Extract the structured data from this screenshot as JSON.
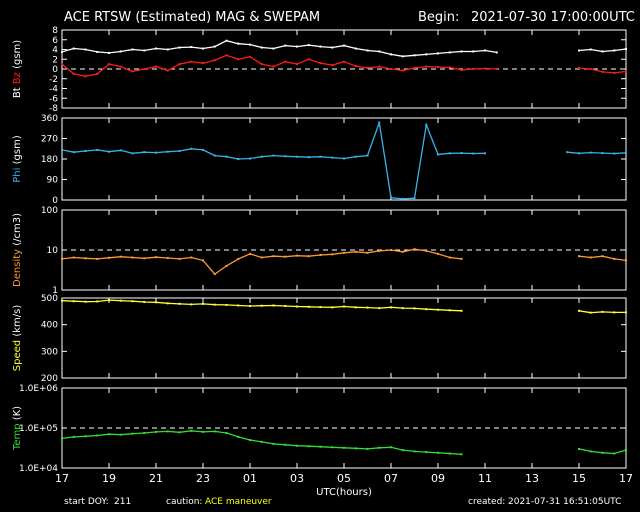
{
  "header": {
    "title": "ACE RTSW (Estimated) MAG & SWEPAM",
    "begin_label": "Begin:",
    "begin_value": "2021-07-30 17:00:00UTC"
  },
  "footer": {
    "start_doy_label": "start DOY:",
    "start_doy": "211",
    "caution_label": "caution:",
    "caution_value": "ACE maneuver",
    "created_label": "created:",
    "created_value": "2021-07-31 16:51:05UTC"
  },
  "colors": {
    "bt": "#ffffff",
    "bz": "#ff1a1a",
    "phi": "#36b4e6",
    "density": "#ff9933",
    "speed": "#ffff33",
    "temp": "#33dd33",
    "axis": "#ffffff",
    "background": "#000000",
    "caution": "#ffff00"
  },
  "chart_data": {
    "type": "line",
    "x_label": "UTC(hours)",
    "x_ticks": [
      "17",
      "19",
      "21",
      "23",
      "01",
      "03",
      "05",
      "07",
      "09",
      "11",
      "13",
      "15",
      "17"
    ],
    "x_hours": [
      0,
      48
    ],
    "panels": [
      {
        "id": "mag",
        "ylabel_parts": [
          "Bt",
          "Bz",
          "(gsm)"
        ],
        "ylim": [
          -8,
          8
        ],
        "yticks": [
          "8",
          "6",
          "4",
          "2",
          "0",
          "-2",
          "-4",
          "-6",
          "-8"
        ],
        "ytick_values": [
          8,
          6,
          4,
          2,
          0,
          -2,
          -4,
          -6,
          -8
        ],
        "reference_line": 0,
        "series": [
          {
            "name": "Bt",
            "color_key": "bt",
            "x": [
              0,
              1,
              2,
              3,
              4,
              5,
              6,
              7,
              8,
              9,
              10,
              11,
              12,
              13,
              14,
              15,
              16,
              17,
              18,
              19,
              20,
              21,
              22,
              23,
              24,
              25,
              26,
              27,
              28,
              29,
              30,
              31,
              32,
              33,
              34,
              35,
              36,
              37,
              38,
              39,
              40,
              41,
              42,
              43,
              44,
              45,
              46,
              47,
              48
            ],
            "y": [
              3.5,
              4.2,
              4.0,
              3.5,
              3.3,
              3.6,
              4.0,
              3.8,
              4.2,
              4.0,
              4.4,
              4.5,
              4.2,
              4.6,
              5.8,
              5.2,
              5.0,
              4.4,
              4.2,
              4.8,
              4.6,
              4.9,
              4.6,
              4.4,
              4.8,
              4.2,
              3.8,
              3.6,
              3.0,
              2.6,
              2.8,
              3.0,
              3.2,
              3.4,
              3.6,
              3.6,
              3.8,
              3.4,
              null,
              null,
              null,
              null,
              null,
              null,
              3.8,
              4.0,
              3.6,
              3.8,
              4.1
            ]
          },
          {
            "name": "Bz",
            "color_key": "bz",
            "x": [
              0,
              1,
              2,
              3,
              4,
              5,
              6,
              7,
              8,
              9,
              10,
              11,
              12,
              13,
              14,
              15,
              16,
              17,
              18,
              19,
              20,
              21,
              22,
              23,
              24,
              25,
              26,
              27,
              28,
              29,
              30,
              31,
              32,
              33,
              34,
              35,
              36,
              37,
              38,
              39,
              40,
              41,
              42,
              43,
              44,
              45,
              46,
              47,
              48
            ],
            "y": [
              1.0,
              -1.0,
              -1.5,
              -1.0,
              1.0,
              0.5,
              -0.5,
              0.0,
              0.5,
              -0.3,
              1.0,
              1.5,
              1.2,
              1.8,
              2.8,
              2.0,
              2.5,
              1.0,
              0.5,
              1.5,
              1.0,
              2.0,
              1.2,
              0.8,
              1.5,
              0.6,
              0.2,
              0.5,
              0.0,
              -0.3,
              0.2,
              0.5,
              0.4,
              0.3,
              -0.2,
              0.0,
              0.1,
              0.0,
              null,
              null,
              null,
              null,
              null,
              null,
              0.2,
              0.0,
              -0.6,
              -0.8,
              -0.5
            ]
          }
        ]
      },
      {
        "id": "phi",
        "ylabel_parts": [
          "Phi",
          "(gsm)"
        ],
        "ylim": [
          0,
          360
        ],
        "yticks": [
          "360",
          "270",
          "180",
          "90",
          "0"
        ],
        "ytick_values": [
          360,
          270,
          180,
          90,
          0
        ],
        "series": [
          {
            "name": "Phi",
            "color_key": "phi",
            "x": [
              0,
              1,
              2,
              3,
              4,
              5,
              6,
              7,
              8,
              9,
              10,
              11,
              12,
              13,
              14,
              15,
              16,
              17,
              18,
              19,
              20,
              21,
              22,
              23,
              24,
              25,
              26,
              27,
              28,
              29,
              30,
              31,
              32,
              33,
              34,
              35,
              36,
              37,
              38,
              39,
              40,
              41,
              42,
              43,
              44,
              45,
              46,
              47,
              48
            ],
            "y": [
              220,
              210,
              215,
              220,
              212,
              218,
              205,
              210,
              208,
              212,
              215,
              225,
              220,
              195,
              190,
              180,
              182,
              190,
              195,
              192,
              190,
              188,
              190,
              186,
              182,
              190,
              195,
              340,
              10,
              5,
              8,
              330,
              200,
              205,
              206,
              204,
              205,
              null,
              null,
              null,
              null,
              null,
              null,
              210,
              205,
              208,
              206,
              204,
              207
            ]
          }
        ]
      },
      {
        "id": "density",
        "ylabel_parts": [
          "Density",
          "(/cm3)"
        ],
        "ylim": [
          1,
          100
        ],
        "log": true,
        "yticks": [
          "100",
          "10",
          "1"
        ],
        "ytick_values": [
          100,
          10,
          1
        ],
        "reference_line": 10,
        "series": [
          {
            "name": "Density",
            "color_key": "density",
            "x": [
              0,
              1,
              2,
              3,
              4,
              5,
              6,
              7,
              8,
              9,
              10,
              11,
              12,
              13,
              14,
              15,
              16,
              17,
              18,
              19,
              20,
              21,
              22,
              23,
              24,
              25,
              26,
              27,
              28,
              29,
              30,
              31,
              32,
              33,
              34,
              35,
              36,
              37,
              38,
              39,
              40,
              41,
              42,
              43,
              44,
              45,
              46,
              47,
              48
            ],
            "y": [
              6.0,
              6.5,
              6.2,
              6.0,
              6.4,
              6.8,
              6.5,
              6.2,
              6.6,
              6.3,
              6.0,
              6.5,
              5.5,
              2.5,
              4.0,
              6.0,
              8.0,
              6.5,
              7.0,
              6.8,
              7.2,
              7.0,
              7.5,
              7.8,
              8.5,
              9.0,
              8.5,
              9.5,
              10.0,
              9.0,
              10.5,
              9.5,
              8.0,
              6.5,
              6.0,
              null,
              null,
              null,
              null,
              null,
              null,
              null,
              null,
              null,
              7.0,
              6.5,
              7.0,
              6.0,
              5.5
            ]
          }
        ]
      },
      {
        "id": "speed",
        "ylabel_parts": [
          "Speed",
          "(km/s)"
        ],
        "ylim": [
          200,
          500
        ],
        "yticks": [
          "500",
          "400",
          "300",
          "200"
        ],
        "ytick_values": [
          500,
          400,
          300,
          200
        ],
        "series": [
          {
            "name": "Speed",
            "color_key": "speed",
            "x": [
              0,
              1,
              2,
              3,
              4,
              5,
              6,
              7,
              8,
              9,
              10,
              11,
              12,
              13,
              14,
              15,
              16,
              17,
              18,
              19,
              20,
              21,
              22,
              23,
              24,
              25,
              26,
              27,
              28,
              29,
              30,
              31,
              32,
              33,
              34,
              35,
              36,
              37,
              38,
              39,
              40,
              41,
              42,
              43,
              44,
              45,
              46,
              47,
              48
            ],
            "y": [
              490,
              488,
              486,
              487,
              492,
              490,
              488,
              485,
              484,
              480,
              478,
              476,
              478,
              475,
              474,
              472,
              470,
              471,
              472,
              470,
              468,
              467,
              466,
              465,
              468,
              465,
              464,
              462,
              465,
              462,
              461,
              458,
              456,
              454,
              452,
              null,
              null,
              null,
              null,
              null,
              null,
              null,
              null,
              null,
              452,
              445,
              448,
              446,
              446
            ]
          }
        ]
      },
      {
        "id": "temp",
        "ylabel_parts": [
          "Temp",
          "(K)"
        ],
        "ylim": [
          10000,
          1000000
        ],
        "log": true,
        "yticks": [
          "1.0E+06",
          "1.0E+05",
          "1.0E+04"
        ],
        "ytick_values": [
          1000000,
          100000,
          10000
        ],
        "reference_line": 100000,
        "series": [
          {
            "name": "Temp",
            "color_key": "temp",
            "x": [
              0,
              1,
              2,
              3,
              4,
              5,
              6,
              7,
              8,
              9,
              10,
              11,
              12,
              13,
              14,
              15,
              16,
              17,
              18,
              19,
              20,
              21,
              22,
              23,
              24,
              25,
              26,
              27,
              28,
              29,
              30,
              31,
              32,
              33,
              34,
              35,
              36,
              37,
              38,
              39,
              40,
              41,
              42,
              43,
              44,
              45,
              46,
              47,
              48
            ],
            "y": [
              55000,
              60000,
              62000,
              65000,
              70000,
              68000,
              72000,
              75000,
              80000,
              82000,
              78000,
              85000,
              80000,
              82000,
              75000,
              60000,
              50000,
              45000,
              40000,
              38000,
              36000,
              35000,
              34000,
              33000,
              32000,
              31000,
              30000,
              32000,
              33000,
              28000,
              26000,
              25000,
              24000,
              23000,
              22000,
              null,
              null,
              null,
              null,
              null,
              null,
              null,
              null,
              null,
              30000,
              26000,
              24000,
              23000,
              28000
            ]
          }
        ]
      }
    ]
  }
}
